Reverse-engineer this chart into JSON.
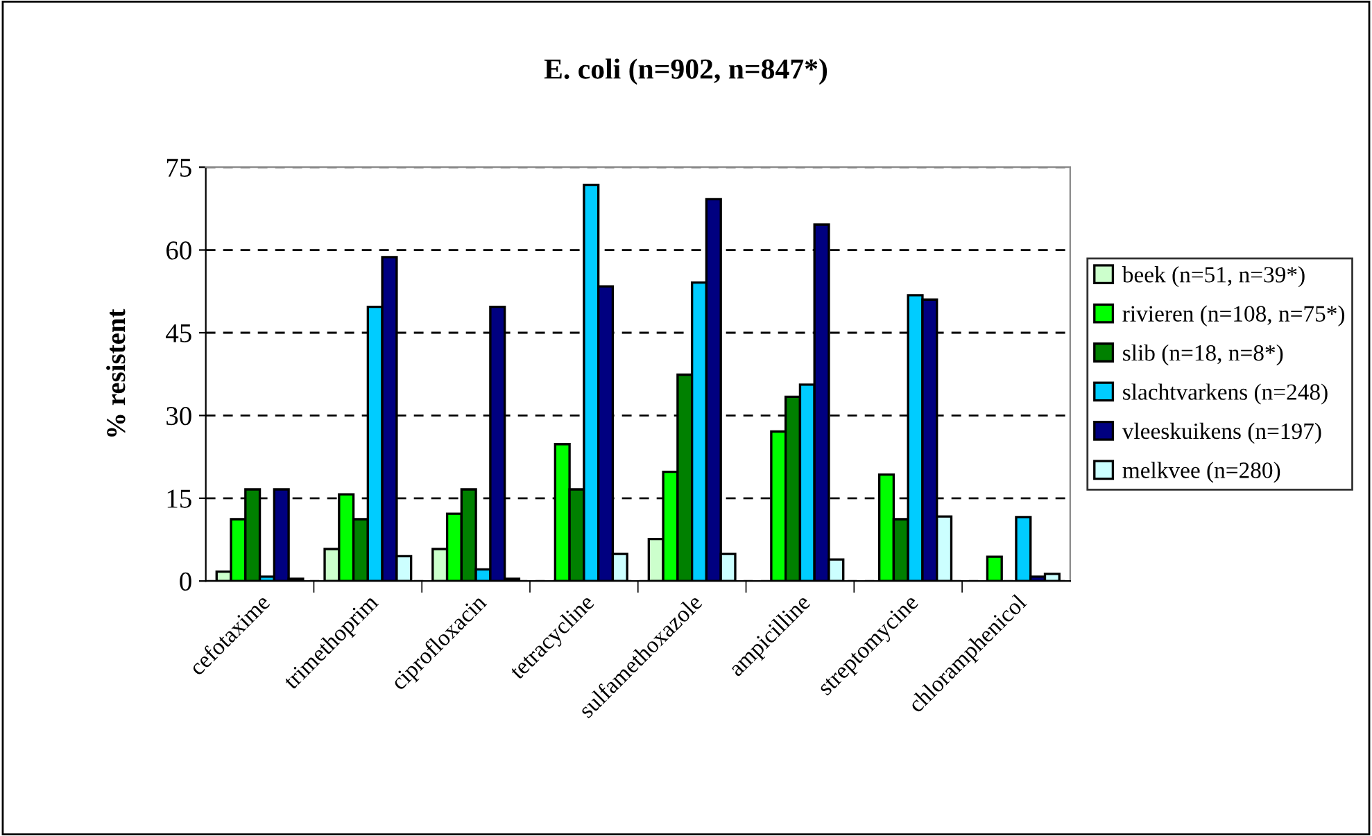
{
  "chart_data": {
    "type": "bar",
    "title": "E. coli (n=902, n=847*)",
    "ylabel": "% resistent",
    "categories": [
      "cefotaxime",
      "trimethoprim",
      "ciprofloxacin",
      "tetracycline",
      "sulfamethoxazole",
      "ampicilline",
      "streptomycine",
      "chloramphenicol"
    ],
    "series": [
      {
        "name": "beek (n=51, n=39*)",
        "color": "#ccffcc",
        "values": [
          1.7,
          5.8,
          5.8,
          null,
          7.6,
          null,
          null,
          null
        ]
      },
      {
        "name": "rivieren (n=108, n=75*)",
        "color": "#00ff00",
        "values": [
          11.2,
          15.7,
          12.2,
          24.8,
          19.8,
          27.1,
          19.3,
          4.4
        ]
      },
      {
        "name": "slib (n=18, n=8*)",
        "color": "#008000",
        "values": [
          16.6,
          11.2,
          16.6,
          16.6,
          37.4,
          33.4,
          11.2,
          null
        ]
      },
      {
        "name": "slachtvarkens (n=248)",
        "color": "#00ccff",
        "values": [
          0.8,
          49.7,
          2.1,
          71.8,
          54.1,
          35.6,
          51.8,
          11.6
        ]
      },
      {
        "name": "vleeskuikens (n=197)",
        "color": "#000080",
        "values": [
          16.6,
          58.7,
          49.7,
          53.4,
          69.2,
          64.6,
          51.0,
          0.8
        ]
      },
      {
        "name": "melkvee (n=280)",
        "color": "#ccffff",
        "values": [
          0.4,
          4.5,
          0.4,
          4.9,
          4.9,
          3.9,
          11.7,
          1.3
        ]
      }
    ],
    "ylim": [
      0,
      75
    ],
    "yticks": [
      0,
      15,
      30,
      45,
      60,
      75
    ],
    "grid": "y",
    "legend": "right"
  }
}
